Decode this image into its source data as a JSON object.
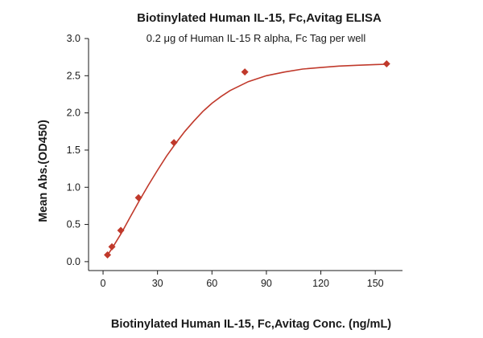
{
  "chart_data": {
    "type": "scatter",
    "title": "Biotinylated Human IL-15, Fc,Avitag ELISA",
    "subtitle": "0.2 μg of Human IL-15 R alpha, Fc Tag per well",
    "xlabel": "Biotinylated Human IL-15, Fc,Avitag Conc. (ng/mL)",
    "ylabel": "Mean Abs.(OD450)",
    "xlim": [
      -8,
      165
    ],
    "ylim": [
      -0.12,
      3.0
    ],
    "x_ticks": [
      0,
      30,
      60,
      90,
      120,
      150
    ],
    "x_tick_labels": [
      "0",
      "30",
      "60",
      "90",
      "120",
      "150"
    ],
    "y_ticks": [
      0.0,
      0.5,
      1.0,
      1.5,
      2.0,
      2.5,
      3.0
    ],
    "y_tick_labels": [
      "0.0",
      "0.5",
      "1.0",
      "1.5",
      "2.0",
      "2.5",
      "3.0"
    ],
    "grid": false,
    "marker_color": "#c0392b",
    "line_color": "#c0392b",
    "series": [
      {
        "points": [
          {
            "x": 2.44,
            "y": 0.09
          },
          {
            "x": 4.88,
            "y": 0.2
          },
          {
            "x": 9.77,
            "y": 0.42
          },
          {
            "x": 19.53,
            "y": 0.86
          },
          {
            "x": 39.06,
            "y": 1.6
          },
          {
            "x": 78.13,
            "y": 2.55
          },
          {
            "x": 156.25,
            "y": 2.66
          }
        ],
        "fit_curve": [
          {
            "x": 2,
            "y": 0.07
          },
          {
            "x": 5,
            "y": 0.18
          },
          {
            "x": 10,
            "y": 0.38
          },
          {
            "x": 15,
            "y": 0.6
          },
          {
            "x": 20,
            "y": 0.82
          },
          {
            "x": 25,
            "y": 1.03
          },
          {
            "x": 30,
            "y": 1.23
          },
          {
            "x": 35,
            "y": 1.42
          },
          {
            "x": 40,
            "y": 1.59
          },
          {
            "x": 45,
            "y": 1.75
          },
          {
            "x": 50,
            "y": 1.89
          },
          {
            "x": 55,
            "y": 2.02
          },
          {
            "x": 60,
            "y": 2.13
          },
          {
            "x": 65,
            "y": 2.22
          },
          {
            "x": 70,
            "y": 2.3
          },
          {
            "x": 80,
            "y": 2.42
          },
          {
            "x": 90,
            "y": 2.5
          },
          {
            "x": 100,
            "y": 2.55
          },
          {
            "x": 110,
            "y": 2.59
          },
          {
            "x": 120,
            "y": 2.61
          },
          {
            "x": 130,
            "y": 2.63
          },
          {
            "x": 140,
            "y": 2.64
          },
          {
            "x": 150,
            "y": 2.65
          },
          {
            "x": 156.25,
            "y": 2.655
          }
        ]
      }
    ]
  }
}
